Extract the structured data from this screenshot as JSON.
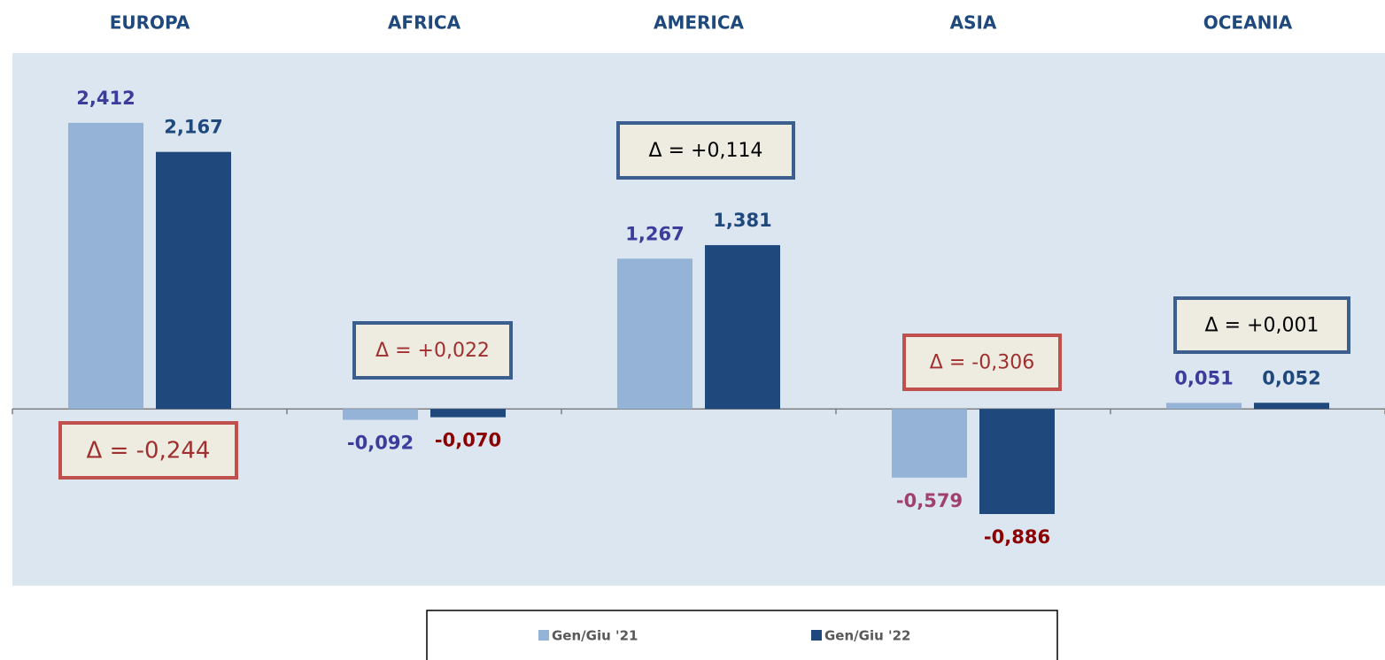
{
  "chart_data": {
    "type": "bar",
    "categories": [
      "EUROPA",
      "AFRICA",
      "AMERICA",
      "ASIA",
      "OCEANIA"
    ],
    "series": [
      {
        "name": "Gen/Giu '21",
        "color": "#95b3d7",
        "values": [
          2.412,
          -0.092,
          1.267,
          -0.579,
          0.051
        ],
        "value_labels": [
          "2,412",
          "-0,092",
          "1,267",
          "-0,579",
          "0,051"
        ],
        "value_label_colors": [
          "#3c3c9c",
          "#3c3c9c",
          "#3c3c9c",
          "#a0406e",
          "#3c3c9c"
        ]
      },
      {
        "name": "Gen/Giu '22",
        "color": "#1f497d",
        "values": [
          2.167,
          -0.07,
          1.381,
          -0.886,
          0.052
        ],
        "value_labels": [
          "2,167",
          "-0,070",
          "1,381",
          "-0,886",
          "0,052"
        ],
        "value_label_colors": [
          "#1f497d",
          "#8b0000",
          "#1f497d",
          "#8b0000",
          "#1f497d"
        ]
      }
    ],
    "annotations": [
      {
        "text": "Δ = -0,244",
        "border_color": "#c0504d",
        "text_color": "#a0302f"
      },
      {
        "text": "Δ = +0,022",
        "border_color": "#3d5f8f",
        "text_color": "#a0302f"
      },
      {
        "text": "Δ = +0,114",
        "border_color": "#3d5f8f",
        "text_color": "#000000"
      },
      {
        "text": "Δ = -0,306",
        "border_color": "#c0504d",
        "text_color": "#a0302f"
      },
      {
        "text": "Δ = +0,001",
        "border_color": "#3d5f8f",
        "text_color": "#000000"
      }
    ],
    "ylim": [
      -1.49,
      3.0
    ],
    "legend": "bottom"
  }
}
